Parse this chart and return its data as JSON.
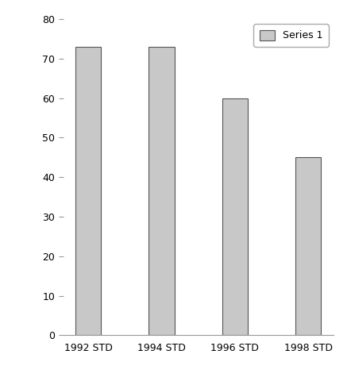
{
  "categories": [
    "1992 STD",
    "1994 STD",
    "1996 STD",
    "1998 STD"
  ],
  "values": [
    73,
    73,
    60,
    45
  ],
  "bar_color": "#c8c8c8",
  "bar_edgecolor": "#555555",
  "ylim": [
    0,
    80
  ],
  "yticks": [
    0,
    10,
    20,
    30,
    40,
    50,
    60,
    70,
    80
  ],
  "legend_label": "Series 1",
  "background_color": "#ffffff",
  "bar_width": 0.35
}
